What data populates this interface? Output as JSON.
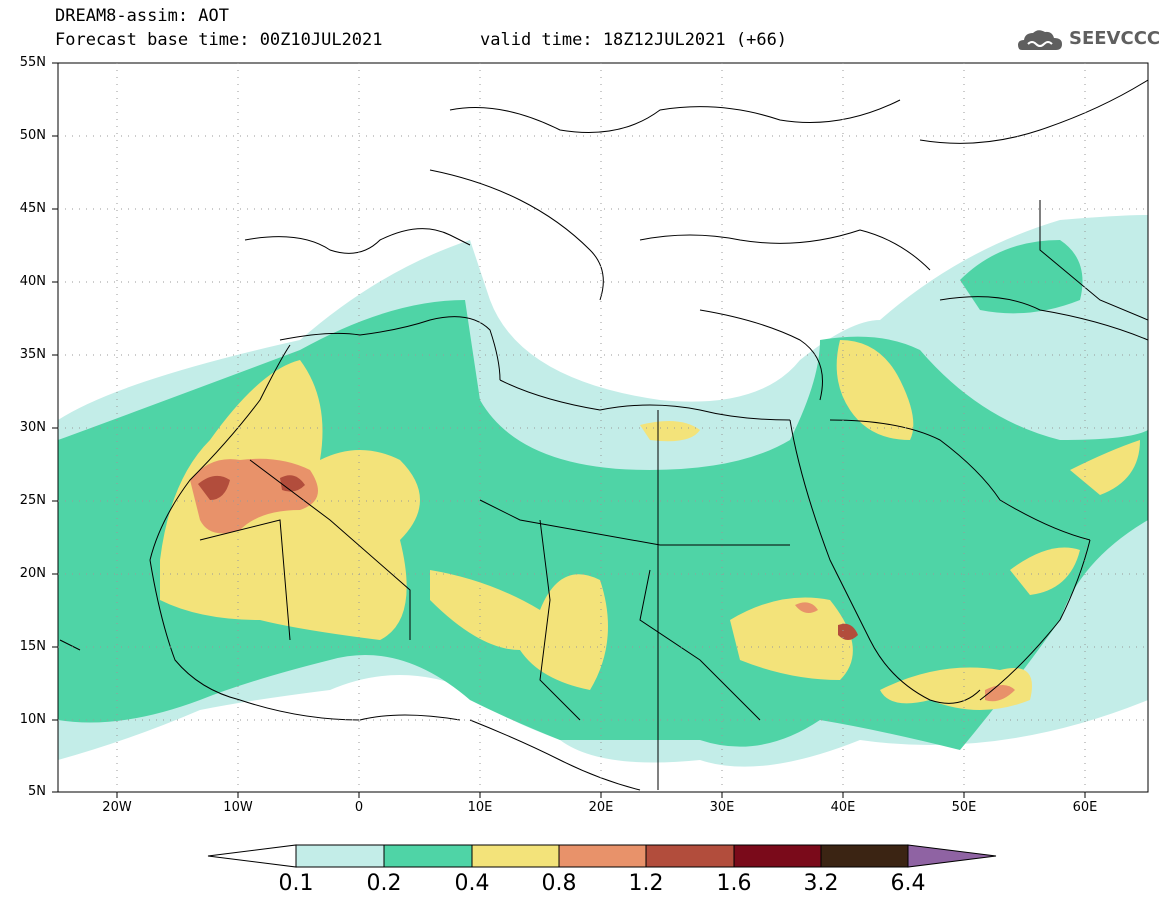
{
  "header": {
    "title": "DREAM8-assim: AOT",
    "base_time": "Forecast base time: 00Z10JUL2021",
    "valid_time": "valid time: 18Z12JUL2021 (+66)"
  },
  "logo": {
    "text": "SEEVCCC",
    "icon": "cloud-icon",
    "color": "#5f5f5f"
  },
  "map": {
    "lon_range": [
      -25,
      65
    ],
    "lat_range": [
      5,
      55
    ],
    "lat_ticks": [
      "55N",
      "50N",
      "45N",
      "40N",
      "35N",
      "30N",
      "25N",
      "20N",
      "15N",
      "10N",
      "5N"
    ],
    "lon_ticks": [
      "20W",
      "10W",
      "0",
      "10E",
      "20E",
      "30E",
      "40E",
      "50E",
      "60E"
    ]
  },
  "legend": {
    "colors": [
      "#c3ede8",
      "#4fd4a6",
      "#f3e37a",
      "#e8926a",
      "#b24d3c",
      "#7a0a1a",
      "#3b2413",
      "#8f63a3"
    ],
    "labels": [
      "0.1",
      "0.2",
      "0.4",
      "0.8",
      "1.2",
      "1.6",
      "3.2",
      "6.4"
    ]
  }
}
